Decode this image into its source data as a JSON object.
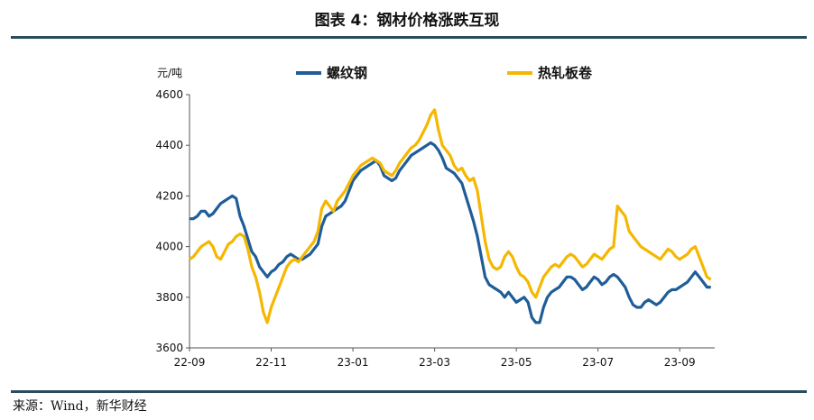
{
  "title": "图表 4：钢材价格涨跌互现",
  "source": "来源：Wind，新华财经",
  "chart_data": {
    "type": "line",
    "unit_label": "元/吨",
    "ylim": [
      3600,
      4600
    ],
    "yticks": [
      3600,
      3800,
      4000,
      4200,
      4400,
      4600
    ],
    "xlim": [
      0,
      270
    ],
    "xticks": [
      {
        "label": "22-09",
        "x": 0
      },
      {
        "label": "22-11",
        "x": 42
      },
      {
        "label": "23-01",
        "x": 84
      },
      {
        "label": "23-03",
        "x": 126
      },
      {
        "label": "23-05",
        "x": 168
      },
      {
        "label": "23-07",
        "x": 210
      },
      {
        "label": "23-09",
        "x": 252
      }
    ],
    "legend_position": "top-center",
    "series": [
      {
        "name": "螺纹钢",
        "color": "#1f5d99",
        "points": [
          [
            0,
            4110
          ],
          [
            2,
            4110
          ],
          [
            4,
            4120
          ],
          [
            6,
            4140
          ],
          [
            8,
            4140
          ],
          [
            10,
            4120
          ],
          [
            12,
            4130
          ],
          [
            14,
            4150
          ],
          [
            16,
            4170
          ],
          [
            18,
            4180
          ],
          [
            20,
            4190
          ],
          [
            22,
            4200
          ],
          [
            24,
            4190
          ],
          [
            26,
            4120
          ],
          [
            28,
            4080
          ],
          [
            30,
            4030
          ],
          [
            32,
            3980
          ],
          [
            34,
            3960
          ],
          [
            36,
            3920
          ],
          [
            38,
            3900
          ],
          [
            40,
            3880
          ],
          [
            42,
            3900
          ],
          [
            44,
            3910
          ],
          [
            46,
            3930
          ],
          [
            48,
            3940
          ],
          [
            50,
            3960
          ],
          [
            52,
            3970
          ],
          [
            54,
            3960
          ],
          [
            56,
            3950
          ],
          [
            58,
            3950
          ],
          [
            60,
            3960
          ],
          [
            62,
            3970
          ],
          [
            64,
            3990
          ],
          [
            66,
            4010
          ],
          [
            68,
            4080
          ],
          [
            70,
            4120
          ],
          [
            72,
            4130
          ],
          [
            74,
            4140
          ],
          [
            76,
            4150
          ],
          [
            78,
            4160
          ],
          [
            80,
            4180
          ],
          [
            82,
            4220
          ],
          [
            84,
            4260
          ],
          [
            86,
            4280
          ],
          [
            88,
            4300
          ],
          [
            90,
            4310
          ],
          [
            92,
            4320
          ],
          [
            94,
            4330
          ],
          [
            96,
            4340
          ],
          [
            98,
            4320
          ],
          [
            100,
            4280
          ],
          [
            102,
            4270
          ],
          [
            104,
            4260
          ],
          [
            106,
            4270
          ],
          [
            108,
            4300
          ],
          [
            110,
            4320
          ],
          [
            112,
            4340
          ],
          [
            114,
            4360
          ],
          [
            116,
            4370
          ],
          [
            118,
            4380
          ],
          [
            120,
            4390
          ],
          [
            122,
            4400
          ],
          [
            124,
            4410
          ],
          [
            126,
            4400
          ],
          [
            128,
            4380
          ],
          [
            130,
            4350
          ],
          [
            132,
            4310
          ],
          [
            134,
            4300
          ],
          [
            136,
            4290
          ],
          [
            138,
            4270
          ],
          [
            140,
            4250
          ],
          [
            142,
            4200
          ],
          [
            144,
            4150
          ],
          [
            146,
            4100
          ],
          [
            148,
            4040
          ],
          [
            150,
            3960
          ],
          [
            152,
            3880
          ],
          [
            154,
            3850
          ],
          [
            156,
            3840
          ],
          [
            158,
            3830
          ],
          [
            160,
            3820
          ],
          [
            162,
            3800
          ],
          [
            164,
            3820
          ],
          [
            166,
            3800
          ],
          [
            168,
            3780
          ],
          [
            170,
            3790
          ],
          [
            172,
            3800
          ],
          [
            174,
            3780
          ],
          [
            176,
            3720
          ],
          [
            178,
            3700
          ],
          [
            180,
            3700
          ],
          [
            182,
            3760
          ],
          [
            184,
            3800
          ],
          [
            186,
            3820
          ],
          [
            188,
            3830
          ],
          [
            190,
            3840
          ],
          [
            192,
            3860
          ],
          [
            194,
            3880
          ],
          [
            196,
            3880
          ],
          [
            198,
            3870
          ],
          [
            200,
            3850
          ],
          [
            202,
            3830
          ],
          [
            204,
            3840
          ],
          [
            206,
            3860
          ],
          [
            208,
            3880
          ],
          [
            210,
            3870
          ],
          [
            212,
            3850
          ],
          [
            214,
            3860
          ],
          [
            216,
            3880
          ],
          [
            218,
            3890
          ],
          [
            220,
            3880
          ],
          [
            222,
            3860
          ],
          [
            224,
            3840
          ],
          [
            226,
            3800
          ],
          [
            228,
            3770
          ],
          [
            230,
            3760
          ],
          [
            232,
            3760
          ],
          [
            234,
            3780
          ],
          [
            236,
            3790
          ],
          [
            238,
            3780
          ],
          [
            240,
            3770
          ],
          [
            242,
            3780
          ],
          [
            244,
            3800
          ],
          [
            246,
            3820
          ],
          [
            248,
            3830
          ],
          [
            250,
            3830
          ],
          [
            252,
            3840
          ],
          [
            254,
            3850
          ],
          [
            256,
            3860
          ],
          [
            258,
            3880
          ],
          [
            260,
            3900
          ],
          [
            262,
            3880
          ],
          [
            264,
            3860
          ],
          [
            266,
            3840
          ],
          [
            268,
            3840
          ]
        ]
      },
      {
        "name": "热轧板卷",
        "color": "#f5b700",
        "points": [
          [
            0,
            3950
          ],
          [
            2,
            3960
          ],
          [
            4,
            3980
          ],
          [
            6,
            4000
          ],
          [
            8,
            4010
          ],
          [
            10,
            4020
          ],
          [
            12,
            4000
          ],
          [
            14,
            3960
          ],
          [
            16,
            3950
          ],
          [
            18,
            3980
          ],
          [
            20,
            4010
          ],
          [
            22,
            4020
          ],
          [
            24,
            4040
          ],
          [
            26,
            4050
          ],
          [
            28,
            4040
          ],
          [
            30,
            3990
          ],
          [
            32,
            3920
          ],
          [
            34,
            3880
          ],
          [
            36,
            3820
          ],
          [
            38,
            3740
          ],
          [
            40,
            3700
          ],
          [
            42,
            3760
          ],
          [
            44,
            3800
          ],
          [
            46,
            3840
          ],
          [
            48,
            3880
          ],
          [
            50,
            3920
          ],
          [
            52,
            3940
          ],
          [
            54,
            3950
          ],
          [
            56,
            3940
          ],
          [
            58,
            3960
          ],
          [
            60,
            3980
          ],
          [
            62,
            4000
          ],
          [
            64,
            4020
          ],
          [
            66,
            4060
          ],
          [
            68,
            4150
          ],
          [
            70,
            4180
          ],
          [
            72,
            4160
          ],
          [
            74,
            4140
          ],
          [
            76,
            4180
          ],
          [
            78,
            4200
          ],
          [
            80,
            4220
          ],
          [
            82,
            4250
          ],
          [
            84,
            4280
          ],
          [
            86,
            4300
          ],
          [
            88,
            4320
          ],
          [
            90,
            4330
          ],
          [
            92,
            4340
          ],
          [
            94,
            4350
          ],
          [
            96,
            4340
          ],
          [
            98,
            4330
          ],
          [
            100,
            4300
          ],
          [
            102,
            4290
          ],
          [
            104,
            4280
          ],
          [
            106,
            4300
          ],
          [
            108,
            4330
          ],
          [
            110,
            4350
          ],
          [
            112,
            4370
          ],
          [
            114,
            4390
          ],
          [
            116,
            4400
          ],
          [
            118,
            4420
          ],
          [
            120,
            4450
          ],
          [
            122,
            4480
          ],
          [
            124,
            4520
          ],
          [
            126,
            4540
          ],
          [
            128,
            4460
          ],
          [
            130,
            4400
          ],
          [
            132,
            4380
          ],
          [
            134,
            4360
          ],
          [
            136,
            4320
          ],
          [
            138,
            4300
          ],
          [
            140,
            4310
          ],
          [
            142,
            4280
          ],
          [
            144,
            4260
          ],
          [
            146,
            4270
          ],
          [
            148,
            4220
          ],
          [
            150,
            4120
          ],
          [
            152,
            4020
          ],
          [
            154,
            3950
          ],
          [
            156,
            3920
          ],
          [
            158,
            3910
          ],
          [
            160,
            3920
          ],
          [
            162,
            3960
          ],
          [
            164,
            3980
          ],
          [
            166,
            3960
          ],
          [
            168,
            3920
          ],
          [
            170,
            3890
          ],
          [
            172,
            3880
          ],
          [
            174,
            3860
          ],
          [
            176,
            3820
          ],
          [
            178,
            3800
          ],
          [
            180,
            3840
          ],
          [
            182,
            3880
          ],
          [
            184,
            3900
          ],
          [
            186,
            3920
          ],
          [
            188,
            3930
          ],
          [
            190,
            3920
          ],
          [
            192,
            3940
          ],
          [
            194,
            3960
          ],
          [
            196,
            3970
          ],
          [
            198,
            3960
          ],
          [
            200,
            3940
          ],
          [
            202,
            3920
          ],
          [
            204,
            3930
          ],
          [
            206,
            3950
          ],
          [
            208,
            3970
          ],
          [
            210,
            3960
          ],
          [
            212,
            3950
          ],
          [
            214,
            3970
          ],
          [
            216,
            3990
          ],
          [
            218,
            4000
          ],
          [
            220,
            4160
          ],
          [
            222,
            4140
          ],
          [
            224,
            4120
          ],
          [
            226,
            4060
          ],
          [
            228,
            4040
          ],
          [
            230,
            4020
          ],
          [
            232,
            4000
          ],
          [
            234,
            3990
          ],
          [
            236,
            3980
          ],
          [
            238,
            3970
          ],
          [
            240,
            3960
          ],
          [
            242,
            3950
          ],
          [
            244,
            3970
          ],
          [
            246,
            3990
          ],
          [
            248,
            3980
          ],
          [
            250,
            3960
          ],
          [
            252,
            3950
          ],
          [
            254,
            3960
          ],
          [
            256,
            3970
          ],
          [
            258,
            3990
          ],
          [
            260,
            4000
          ],
          [
            262,
            3960
          ],
          [
            264,
            3920
          ],
          [
            266,
            3880
          ],
          [
            268,
            3870
          ]
        ]
      }
    ]
  }
}
